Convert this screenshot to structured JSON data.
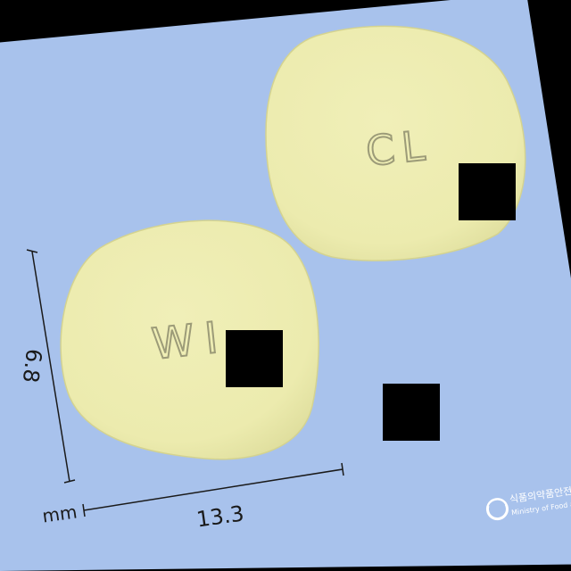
{
  "tablet_front": {
    "imprint": "WI"
  },
  "tablet_back": {
    "imprint": "CL"
  },
  "dimensions": {
    "height_value": "6.8",
    "width_value": "13.3",
    "unit": "mm"
  },
  "watermark": {
    "line1": "식품의약품안전처",
    "line2": "Ministry of Food and Drug Safety"
  },
  "colors": {
    "background": "#a8c2ec",
    "tablet": "#ecebae",
    "imprint": "#9c9b78",
    "redaction": "#000000",
    "watermark": "#ffffff"
  }
}
